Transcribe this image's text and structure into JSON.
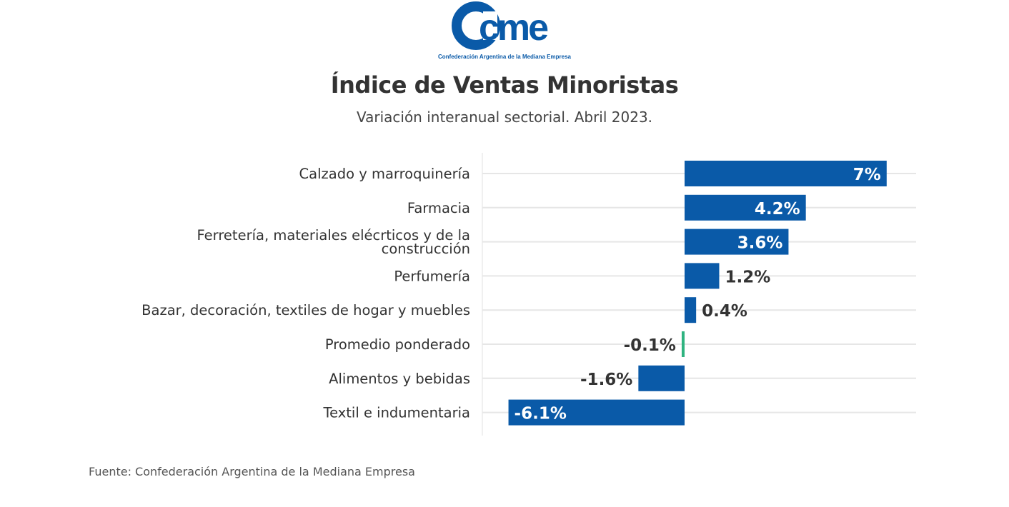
{
  "logo": {
    "text": "cme",
    "caption": "Confederación Argentina de la Mediana Empresa",
    "color": "#0a5aa8"
  },
  "title": "Índice de Ventas Minoristas",
  "subtitle": "Variación interanual sectorial. Abril 2023.",
  "source": "Fuente: Confederación Argentina de la Mediana Empresa",
  "colors": {
    "bar": "#0a5aa8",
    "highlight": "#2fb380",
    "grid": "#e6e6e6",
    "axis": "#e0e0e0"
  },
  "chart_data": {
    "type": "bar",
    "orientation": "horizontal",
    "categories": [
      [
        "Calzado y marroquinería"
      ],
      [
        "Farmacia"
      ],
      [
        "Ferretería, materiales elécrticos y de la",
        "construcción"
      ],
      [
        "Perfumería"
      ],
      [
        "Bazar, decoración, textiles de hogar y muebles"
      ],
      [
        "Promedio ponderado"
      ],
      [
        "Alimentos y bebidas"
      ],
      [
        "Textil e indumentaria"
      ]
    ],
    "values": [
      7,
      4.2,
      3.6,
      1.2,
      0.4,
      -0.1,
      -1.6,
      -6.1
    ],
    "value_labels": [
      "7%",
      "4.2%",
      "3.6%",
      "1.2%",
      "0.4%",
      "-0.1%",
      "-1.6%",
      "-6.1%"
    ],
    "highlight_category_index": 5,
    "xlim": [
      -7,
      8
    ],
    "grid": true,
    "legend": "none"
  }
}
